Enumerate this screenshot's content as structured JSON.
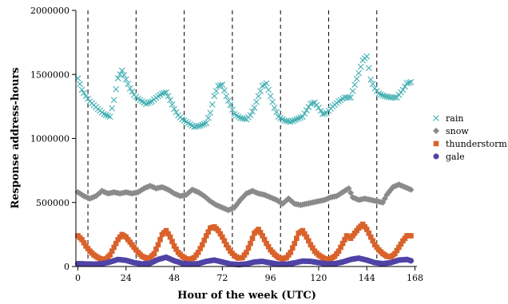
{
  "chart_data": {
    "type": "scatter",
    "title": "",
    "xlabel": "Hour of the week (UTC)",
    "ylabel": "Response address-hours",
    "xlim": [
      -1,
      169
    ],
    "ylim": [
      0,
      2000000
    ],
    "xticks": [
      0,
      24,
      48,
      72,
      96,
      120,
      144,
      168
    ],
    "xtick_labels": [
      "0",
      "24",
      "48",
      "72",
      "96",
      "120",
      "144",
      "168"
    ],
    "yticks": [
      0,
      500000,
      1000000,
      1500000,
      2000000
    ],
    "ytick_labels": [
      "0",
      "500000",
      "1000000",
      "1500000",
      "2000000"
    ],
    "vlines": [
      5,
      29,
      53,
      77,
      101,
      125,
      149
    ],
    "grid": false,
    "legend_position": "right",
    "colors": {
      "rain": "#40aeb2",
      "snow": "#8a8a8a",
      "thunderstorm": "#d9622b",
      "gale": "#4f43a6"
    },
    "series": [
      {
        "name": "rain",
        "marker": "x",
        "keyframes": [
          [
            0,
            1470000
          ],
          [
            2,
            1380000
          ],
          [
            4,
            1330000
          ],
          [
            6,
            1290000
          ],
          [
            10,
            1230000
          ],
          [
            13,
            1190000
          ],
          [
            16,
            1170000
          ],
          [
            18,
            1300000
          ],
          [
            20,
            1470000
          ],
          [
            22,
            1530000
          ],
          [
            24,
            1460000
          ],
          [
            26,
            1390000
          ],
          [
            28,
            1340000
          ],
          [
            30,
            1310000
          ],
          [
            34,
            1270000
          ],
          [
            37,
            1290000
          ],
          [
            40,
            1330000
          ],
          [
            42,
            1350000
          ],
          [
            44,
            1360000
          ],
          [
            46,
            1300000
          ],
          [
            48,
            1230000
          ],
          [
            50,
            1180000
          ],
          [
            52,
            1150000
          ],
          [
            55,
            1120000
          ],
          [
            58,
            1090000
          ],
          [
            61,
            1100000
          ],
          [
            64,
            1120000
          ],
          [
            66,
            1200000
          ],
          [
            68,
            1330000
          ],
          [
            70,
            1410000
          ],
          [
            72,
            1420000
          ],
          [
            74,
            1330000
          ],
          [
            76,
            1260000
          ],
          [
            78,
            1190000
          ],
          [
            81,
            1160000
          ],
          [
            84,
            1150000
          ],
          [
            86,
            1180000
          ],
          [
            88,
            1240000
          ],
          [
            90,
            1330000
          ],
          [
            92,
            1410000
          ],
          [
            94,
            1430000
          ],
          [
            96,
            1330000
          ],
          [
            98,
            1240000
          ],
          [
            100,
            1170000
          ],
          [
            103,
            1140000
          ],
          [
            106,
            1130000
          ],
          [
            109,
            1150000
          ],
          [
            112,
            1170000
          ],
          [
            114,
            1220000
          ],
          [
            116,
            1270000
          ],
          [
            118,
            1280000
          ],
          [
            120,
            1240000
          ],
          [
            122,
            1190000
          ],
          [
            124,
            1200000
          ],
          [
            127,
            1250000
          ],
          [
            130,
            1290000
          ],
          [
            133,
            1320000
          ],
          [
            136,
            1320000
          ],
          [
            138,
            1420000
          ],
          [
            140,
            1510000
          ],
          [
            142,
            1610000
          ],
          [
            144,
            1640000
          ],
          [
            146,
            1460000
          ],
          [
            148,
            1390000
          ],
          [
            150,
            1350000
          ],
          [
            153,
            1330000
          ],
          [
            156,
            1320000
          ],
          [
            159,
            1320000
          ],
          [
            162,
            1380000
          ],
          [
            164,
            1430000
          ],
          [
            166,
            1440000
          ]
        ]
      },
      {
        "name": "snow",
        "marker": "diamond",
        "keyframes": [
          [
            0,
            580000
          ],
          [
            3,
            550000
          ],
          [
            6,
            530000
          ],
          [
            9,
            550000
          ],
          [
            12,
            590000
          ],
          [
            15,
            570000
          ],
          [
            18,
            580000
          ],
          [
            21,
            570000
          ],
          [
            24,
            580000
          ],
          [
            27,
            570000
          ],
          [
            30,
            580000
          ],
          [
            33,
            610000
          ],
          [
            36,
            630000
          ],
          [
            39,
            610000
          ],
          [
            42,
            620000
          ],
          [
            45,
            600000
          ],
          [
            48,
            570000
          ],
          [
            51,
            550000
          ],
          [
            54,
            560000
          ],
          [
            57,
            600000
          ],
          [
            60,
            580000
          ],
          [
            63,
            550000
          ],
          [
            66,
            510000
          ],
          [
            69,
            480000
          ],
          [
            72,
            460000
          ],
          [
            75,
            440000
          ],
          [
            78,
            460000
          ],
          [
            81,
            520000
          ],
          [
            84,
            570000
          ],
          [
            87,
            590000
          ],
          [
            90,
            570000
          ],
          [
            93,
            560000
          ],
          [
            96,
            540000
          ],
          [
            99,
            520000
          ],
          [
            102,
            490000
          ],
          [
            105,
            530000
          ],
          [
            108,
            490000
          ],
          [
            111,
            480000
          ],
          [
            114,
            490000
          ],
          [
            117,
            500000
          ],
          [
            120,
            510000
          ],
          [
            123,
            520000
          ],
          [
            126,
            540000
          ],
          [
            129,
            550000
          ],
          [
            132,
            580000
          ],
          [
            135,
            610000
          ],
          [
            137,
            540000
          ],
          [
            140,
            520000
          ],
          [
            143,
            530000
          ],
          [
            146,
            520000
          ],
          [
            149,
            510000
          ],
          [
            152,
            500000
          ],
          [
            154,
            560000
          ],
          [
            157,
            620000
          ],
          [
            160,
            640000
          ],
          [
            163,
            620000
          ],
          [
            166,
            600000
          ]
        ]
      },
      {
        "name": "thunderstorm",
        "marker": "square",
        "keyframes": [
          [
            0,
            240000
          ],
          [
            2,
            210000
          ],
          [
            4,
            160000
          ],
          [
            6,
            120000
          ],
          [
            8,
            90000
          ],
          [
            10,
            70000
          ],
          [
            12,
            55000
          ],
          [
            14,
            60000
          ],
          [
            16,
            90000
          ],
          [
            18,
            150000
          ],
          [
            20,
            210000
          ],
          [
            22,
            250000
          ],
          [
            24,
            230000
          ],
          [
            26,
            190000
          ],
          [
            28,
            150000
          ],
          [
            30,
            110000
          ],
          [
            32,
            80000
          ],
          [
            34,
            65000
          ],
          [
            36,
            70000
          ],
          [
            38,
            100000
          ],
          [
            40,
            170000
          ],
          [
            42,
            250000
          ],
          [
            44,
            280000
          ],
          [
            46,
            230000
          ],
          [
            48,
            160000
          ],
          [
            50,
            110000
          ],
          [
            52,
            80000
          ],
          [
            54,
            60000
          ],
          [
            56,
            55000
          ],
          [
            58,
            70000
          ],
          [
            60,
            110000
          ],
          [
            62,
            170000
          ],
          [
            64,
            240000
          ],
          [
            66,
            300000
          ],
          [
            68,
            310000
          ],
          [
            70,
            280000
          ],
          [
            72,
            230000
          ],
          [
            74,
            170000
          ],
          [
            76,
            120000
          ],
          [
            78,
            85000
          ],
          [
            80,
            65000
          ],
          [
            82,
            70000
          ],
          [
            84,
            110000
          ],
          [
            86,
            180000
          ],
          [
            88,
            260000
          ],
          [
            90,
            290000
          ],
          [
            92,
            240000
          ],
          [
            94,
            180000
          ],
          [
            96,
            130000
          ],
          [
            98,
            95000
          ],
          [
            100,
            70000
          ],
          [
            102,
            60000
          ],
          [
            104,
            70000
          ],
          [
            106,
            110000
          ],
          [
            108,
            180000
          ],
          [
            110,
            260000
          ],
          [
            112,
            280000
          ],
          [
            114,
            230000
          ],
          [
            116,
            170000
          ],
          [
            118,
            120000
          ],
          [
            120,
            90000
          ],
          [
            122,
            70000
          ],
          [
            124,
            55000
          ],
          [
            126,
            60000
          ],
          [
            128,
            80000
          ],
          [
            130,
            120000
          ],
          [
            132,
            180000
          ],
          [
            134,
            240000
          ],
          [
            136,
            220000
          ],
          [
            138,
            260000
          ],
          [
            140,
            300000
          ],
          [
            142,
            330000
          ],
          [
            144,
            290000
          ],
          [
            146,
            230000
          ],
          [
            148,
            170000
          ],
          [
            150,
            130000
          ],
          [
            152,
            100000
          ],
          [
            154,
            80000
          ],
          [
            156,
            75000
          ],
          [
            158,
            100000
          ],
          [
            160,
            150000
          ],
          [
            162,
            200000
          ],
          [
            164,
            240000
          ],
          [
            166,
            240000
          ]
        ]
      },
      {
        "name": "gale",
        "marker": "circle",
        "keyframes": [
          [
            0,
            22000
          ],
          [
            4,
            20000
          ],
          [
            8,
            18000
          ],
          [
            12,
            22000
          ],
          [
            16,
            35000
          ],
          [
            20,
            55000
          ],
          [
            24,
            48000
          ],
          [
            28,
            30000
          ],
          [
            32,
            20000
          ],
          [
            36,
            25000
          ],
          [
            40,
            55000
          ],
          [
            44,
            72000
          ],
          [
            48,
            45000
          ],
          [
            52,
            25000
          ],
          [
            56,
            18000
          ],
          [
            60,
            22000
          ],
          [
            64,
            40000
          ],
          [
            68,
            50000
          ],
          [
            72,
            35000
          ],
          [
            76,
            20000
          ],
          [
            80,
            15000
          ],
          [
            84,
            20000
          ],
          [
            88,
            35000
          ],
          [
            92,
            40000
          ],
          [
            96,
            28000
          ],
          [
            100,
            18000
          ],
          [
            104,
            18000
          ],
          [
            108,
            28000
          ],
          [
            112,
            42000
          ],
          [
            116,
            40000
          ],
          [
            120,
            30000
          ],
          [
            124,
            20000
          ],
          [
            128,
            22000
          ],
          [
            132,
            35000
          ],
          [
            136,
            55000
          ],
          [
            140,
            65000
          ],
          [
            144,
            50000
          ],
          [
            148,
            30000
          ],
          [
            152,
            22000
          ],
          [
            156,
            30000
          ],
          [
            160,
            50000
          ],
          [
            164,
            55000
          ],
          [
            166,
            45000
          ]
        ]
      }
    ]
  }
}
